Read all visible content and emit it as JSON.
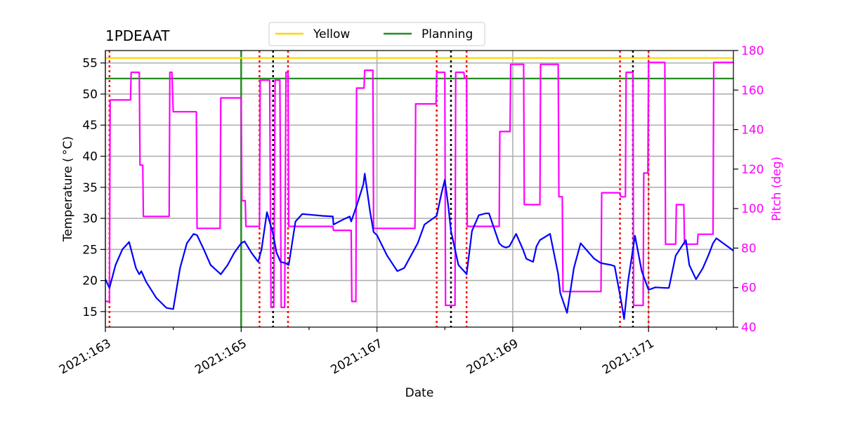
{
  "chart_data": {
    "type": "line",
    "title": "1PDEAAT",
    "xlabel": "Date",
    "ylabel": "Temperature ($^\\circ$C)",
    "ylabel_display": "Temperature ( °C)",
    "y2label": "Pitch (deg)",
    "xlim": [
      163.0,
      172.25
    ],
    "ylim": [
      12.5,
      57.0
    ],
    "y2lim": [
      40,
      180
    ],
    "x_ticks": [
      163,
      165,
      167,
      169,
      171
    ],
    "x_tick_labels": [
      "2021:163",
      "2021:165",
      "2021:167",
      "2021:169",
      "2021:171"
    ],
    "y_ticks": [
      15,
      20,
      25,
      30,
      35,
      40,
      45,
      50,
      55
    ],
    "y2_ticks": [
      40,
      60,
      80,
      100,
      120,
      140,
      160,
      180
    ],
    "grid": true,
    "legend": {
      "position": "top-center",
      "entries": [
        "Yellow",
        "Planning"
      ]
    },
    "colors": {
      "temperature": "#0000ff",
      "pitch": "#ff00ff",
      "yellow": "#ffd700",
      "planning": "#228b22",
      "red_markers": "#ff0000",
      "black_markers": "#000000",
      "grid": "#b0b0b0"
    },
    "limits": {
      "yellow": 55.8,
      "planning": 52.5
    },
    "planning_vline": 165.0,
    "red_vlines": [
      163.06,
      165.27,
      165.69,
      167.88,
      168.32,
      170.58,
      171.0
    ],
    "black_vlines": [
      165.47,
      168.09,
      170.77
    ],
    "series": [
      {
        "name": "Temperature",
        "axis": "left",
        "x": [
          163.0,
          163.06,
          163.15,
          163.25,
          163.35,
          163.45,
          163.5,
          163.53,
          163.6,
          163.75,
          163.9,
          164.0,
          164.1,
          164.2,
          164.3,
          164.35,
          164.45,
          164.55,
          164.65,
          164.7,
          164.8,
          164.9,
          165.0,
          165.05,
          165.15,
          165.25,
          165.3,
          165.38,
          165.47,
          165.52,
          165.58,
          165.65,
          165.7,
          165.75,
          165.8,
          165.9,
          166.0,
          166.2,
          166.35,
          166.36,
          166.5,
          166.6,
          166.62,
          166.7,
          166.8,
          166.82,
          166.9,
          166.95,
          167.0,
          167.15,
          167.3,
          167.4,
          167.5,
          167.6,
          167.7,
          167.88,
          167.95,
          168.0,
          168.05,
          168.09,
          168.15,
          168.2,
          168.3,
          168.32,
          168.4,
          168.5,
          168.6,
          168.65,
          168.8,
          168.85,
          168.9,
          168.95,
          169.0,
          169.05,
          169.15,
          169.2,
          169.3,
          169.35,
          169.4,
          169.55,
          169.67,
          169.7,
          169.8,
          169.9,
          170.0,
          170.2,
          170.3,
          170.45,
          170.5,
          170.6,
          170.64,
          170.7,
          170.8,
          170.9,
          171.0,
          171.1,
          171.25,
          171.3,
          171.4,
          171.55,
          171.6,
          171.7,
          171.8,
          171.88,
          171.95,
          172.0,
          172.1,
          172.25
        ],
        "values": [
          20.2,
          18.8,
          22.5,
          25.0,
          26.2,
          22.0,
          21.0,
          21.5,
          19.8,
          17.2,
          15.6,
          15.4,
          22.0,
          26.0,
          27.5,
          27.3,
          25.0,
          22.5,
          21.5,
          21.0,
          22.5,
          24.5,
          26.0,
          26.3,
          24.5,
          23.0,
          25.0,
          31.0,
          27.5,
          24.5,
          23.0,
          22.8,
          22.5,
          26.0,
          29.5,
          30.7,
          30.6,
          30.4,
          30.3,
          29.0,
          29.8,
          30.3,
          29.5,
          32.0,
          35.5,
          37.2,
          31.0,
          27.8,
          27.3,
          24.0,
          21.5,
          22.0,
          24.0,
          26.0,
          29.0,
          30.4,
          34.0,
          36.2,
          32.0,
          28.0,
          25.0,
          22.5,
          21.3,
          21.0,
          28.0,
          30.5,
          30.8,
          30.8,
          26.0,
          25.5,
          25.3,
          25.5,
          26.5,
          27.5,
          25.0,
          23.5,
          23.0,
          25.5,
          26.5,
          27.5,
          21.0,
          18.0,
          14.8,
          22.0,
          26.0,
          23.5,
          22.8,
          22.5,
          22.3,
          16.5,
          13.8,
          20.0,
          27.2,
          21.5,
          18.5,
          18.9,
          18.8,
          18.8,
          24.0,
          26.5,
          22.5,
          20.2,
          22.0,
          24.0,
          26.0,
          26.8,
          26.0,
          24.8
        ]
      },
      {
        "name": "Pitch",
        "axis": "right",
        "x": [
          163.0,
          163.06,
          163.07,
          163.37,
          163.38,
          163.5,
          163.51,
          163.55,
          163.56,
          163.59,
          163.6,
          163.94,
          163.95,
          163.98,
          164.0,
          164.34,
          164.35,
          164.69,
          164.7,
          165.0,
          165.01,
          165.06,
          165.07,
          165.27,
          165.28,
          165.42,
          165.44,
          165.48,
          165.5,
          165.57,
          165.59,
          165.64,
          165.66,
          165.69,
          165.7,
          166.35,
          166.36,
          166.62,
          166.63,
          166.69,
          166.7,
          166.81,
          166.82,
          166.94,
          166.95,
          167.25,
          167.26,
          167.56,
          167.57,
          167.87,
          167.88,
          168.0,
          168.01,
          168.15,
          168.16,
          168.28,
          168.29,
          168.32,
          168.33,
          168.6,
          168.61,
          168.8,
          168.81,
          168.96,
          168.97,
          169.16,
          169.17,
          169.4,
          169.41,
          169.67,
          169.68,
          169.73,
          169.74,
          170.3,
          170.31,
          170.58,
          170.59,
          170.66,
          170.67,
          170.77,
          170.78,
          170.92,
          170.93,
          170.99,
          171.0,
          171.24,
          171.25,
          171.4,
          171.41,
          171.52,
          171.53,
          171.72,
          171.73,
          171.95,
          171.96,
          172.25
        ],
        "values": [
          53,
          53,
          155,
          155,
          169,
          169,
          122,
          122,
          96,
          96,
          96,
          96,
          169,
          169,
          149,
          149,
          90,
          90,
          156,
          156,
          104,
          104,
          91,
          91,
          165,
          165,
          50,
          50,
          165,
          165,
          50,
          50,
          169,
          169,
          91,
          91,
          89,
          89,
          53,
          53,
          161,
          161,
          170,
          170,
          90,
          90,
          90,
          90,
          153,
          153,
          169,
          169,
          51,
          51,
          169,
          169,
          166,
          166,
          91,
          91,
          91,
          91,
          139,
          139,
          173,
          173,
          102,
          102,
          173,
          173,
          106,
          106,
          58,
          58,
          108,
          108,
          106,
          106,
          169,
          169,
          51,
          51,
          118,
          118,
          174,
          174,
          82,
          82,
          102,
          102,
          82,
          82,
          87,
          87,
          174,
          174
        ]
      },
      {
        "name": "Yellow",
        "axis": "left",
        "x": [
          163.0,
          172.25
        ],
        "values": [
          55.8,
          55.8
        ]
      },
      {
        "name": "Planning",
        "axis": "left",
        "x": [
          163.0,
          172.25
        ],
        "values": [
          52.5,
          52.5
        ]
      }
    ]
  }
}
